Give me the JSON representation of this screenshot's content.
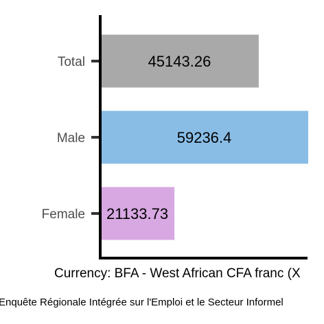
{
  "chart_data": {
    "type": "bar",
    "orientation": "horizontal",
    "categories": [
      "Total",
      "Male",
      "Female"
    ],
    "values": [
      45143.26,
      59236.4,
      21133.73
    ],
    "value_labels": [
      "45143.26",
      "59236.4",
      "21133.73"
    ],
    "xlabel": "Currency: BFA - West African CFA franc (X",
    "ylabel": "",
    "caption": "Enquête Régionale Intégrée sur l'Emploi et le Secteur Informel",
    "xlim": [
      0,
      59236.4
    ],
    "grid": false,
    "legend": "none",
    "colors": {
      "Total": "#a9a9a9",
      "Male": "#89bde6",
      "Female": "#d7a8e2"
    }
  }
}
